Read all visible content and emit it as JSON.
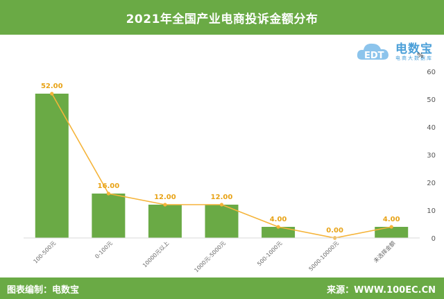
{
  "header": {
    "title": "2021年全国产业电商投诉金额分布"
  },
  "logo": {
    "brand": "电数宝",
    "slogan": "电商大数据库",
    "icon_text": "EDT"
  },
  "footer": {
    "credit": "图表编制：电数宝",
    "source": "来源：WWW.100EC.CN"
  },
  "colors": {
    "bar": "#6aaa45",
    "line": "#f5b43a",
    "label": "#e8a317",
    "header": "#6aaa45"
  },
  "chart_data": {
    "type": "bar",
    "categories": [
      "100-500元",
      "0-100元",
      "10000元以上",
      "1000元-5000元",
      "500-1000元",
      "5000-10000元",
      "未选择金额"
    ],
    "values": [
      52,
      16,
      12,
      12,
      4,
      0,
      4
    ],
    "value_labels": [
      "52.00",
      "16.00",
      "12.00",
      "12.00",
      "4.00",
      "0.00",
      "4.00"
    ],
    "overlay_line": true,
    "unit": "%",
    "ylim": [
      0,
      60
    ],
    "yticks": [
      "0",
      "10",
      "20",
      "30",
      "40",
      "50",
      "60"
    ],
    "axis_side": "right",
    "grid": false
  }
}
